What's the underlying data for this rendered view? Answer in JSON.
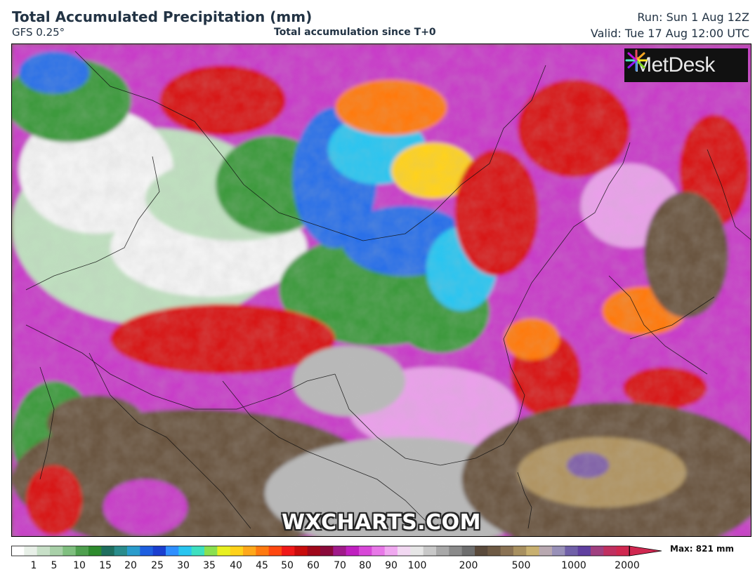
{
  "header": {
    "title": "Total Accumulated Precipitation (mm)",
    "model": "GFS 0.25°",
    "subtitle": "Total accumulation since T+0",
    "run": "Run: Sun 1 Aug 12Z",
    "valid": "Valid: Tue 17 Aug 12:00 UTC"
  },
  "logo": {
    "text": "MetDesk",
    "icon": "metdesk-starburst-icon"
  },
  "watermark": "WXCHARTS.COM",
  "colorbar": {
    "max_label": "Max: 821 mm",
    "ticks": [
      "1",
      "5",
      "10",
      "15",
      "20",
      "25",
      "30",
      "35",
      "40",
      "45",
      "50",
      "60",
      "70",
      "80",
      "90",
      "100",
      "200",
      "500",
      "1000",
      "2000"
    ],
    "colors": [
      "#ffffff",
      "#e8f0e8",
      "#c8e0c8",
      "#a8d0a8",
      "#7fbf7f",
      "#4fa04f",
      "#2e8b2e",
      "#1f6f5f",
      "#2a8c8c",
      "#2a9ccc",
      "#1e5fe0",
      "#1a3fd0",
      "#2f8fff",
      "#29c5f0",
      "#3ee0c0",
      "#8ae050",
      "#e8f020",
      "#ffd21a",
      "#ffa81a",
      "#ff7a10",
      "#ff4810",
      "#f01818",
      "#c80c0c",
      "#a0081a",
      "#8a0a3a",
      "#a01a8a",
      "#c020c0",
      "#d848d8",
      "#e878e8",
      "#f0a8f0",
      "#f2d8f2",
      "#e6e6e6",
      "#c8c8c8",
      "#a8a8a8",
      "#8a8a8a",
      "#6e6e6e",
      "#5a4a3c",
      "#6e5a44",
      "#8a7254",
      "#a89060",
      "#c8b070",
      "#b8a8b0",
      "#9890b8",
      "#7060a8",
      "#6040a0",
      "#a04080",
      "#c03060",
      "#d02850"
    ]
  },
  "map": {
    "colors": {
      "land_dry": "#f4f4f4",
      "light_green": "#bfe0bf",
      "green": "#3e9a3e",
      "blue": "#2a6fe8",
      "cyan": "#29c5f0",
      "yellow": "#ffd21a",
      "orange": "#ff7a10",
      "red": "#d81818",
      "magenta": "#c83cc8",
      "pink": "#eaa0ea",
      "grey": "#b8b8b8",
      "brown": "#6a5440",
      "tan": "#b09462",
      "purple": "#8060a8"
    }
  }
}
